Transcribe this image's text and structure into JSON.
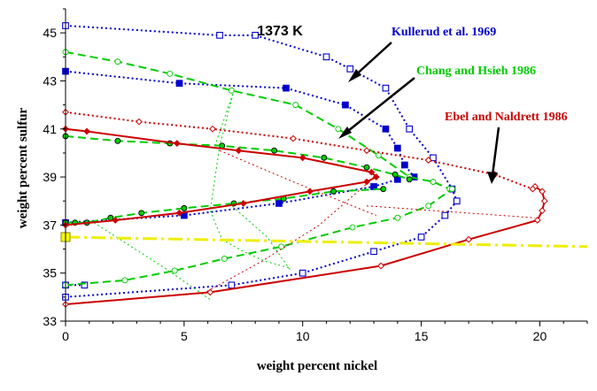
{
  "chart_data": {
    "type": "line",
    "title": "1373 K",
    "xlabel": "weight percent nickel",
    "ylabel": "weight percent sulfur",
    "xlim": [
      0,
      22
    ],
    "ylim": [
      33,
      46
    ],
    "x_ticks": [
      0,
      5,
      10,
      15,
      20
    ],
    "y_ticks": [
      33,
      35,
      37,
      39,
      41,
      43,
      45
    ],
    "grid": false,
    "annotations": [
      {
        "text": "Kullerud et al. 1969",
        "color": "#0000cc"
      },
      {
        "text": "Chang and Hsieh 1986",
        "color": "#00cc00"
      },
      {
        "text": "Ebel and Naldrett 1986",
        "color": "#cc0000"
      }
    ],
    "series": [
      {
        "name": "Kullerud et al. 1969",
        "color": "#0000cc",
        "lines": [
          {
            "style": "dotted",
            "width": 2,
            "marker": "square-open",
            "x": [
              0.0,
              6.5,
              8.0,
              11.0,
              12.0,
              13.5,
              14.5,
              15.5,
              16.3,
              16.5,
              16.0,
              15.0,
              13.0,
              10.0,
              7.0,
              0.0
            ],
            "y": [
              45.3,
              44.9,
              44.9,
              44.0,
              43.5,
              42.7,
              41.0,
              39.8,
              38.5,
              38.0,
              37.4,
              36.5,
              35.9,
              35.0,
              34.5,
              34.0
            ]
          },
          {
            "style": "dotted",
            "width": 2,
            "marker": "square-filled",
            "x": [
              0.0,
              4.8,
              9.3,
              11.8,
              13.5,
              14.0,
              14.3,
              14.7
            ],
            "y": [
              43.4,
              42.9,
              42.7,
              42.0,
              41.0,
              40.2,
              39.5,
              39.0
            ]
          },
          {
            "style": "dotted",
            "width": 2,
            "marker": "square-filled",
            "x": [
              0.0,
              5.0,
              9.0,
              13.0,
              14.0
            ],
            "y": [
              37.1,
              37.4,
              37.9,
              38.6,
              38.9
            ]
          },
          {
            "style": "dotted",
            "width": 2,
            "marker": "square-open",
            "x": [
              0.0,
              0.8
            ],
            "y": [
              34.5,
              34.5
            ]
          }
        ]
      },
      {
        "name": "Chang and Hsieh 1986",
        "color": "#00cc00",
        "lines": [
          {
            "style": "dashed",
            "width": 2,
            "marker": "circle-open",
            "x": [
              0.0,
              2.2,
              4.4,
              7.0,
              9.7,
              11.5,
              13.2,
              14.5,
              15.5,
              16.2
            ],
            "y": [
              44.2,
              43.8,
              43.3,
              42.6,
              42.0,
              41.0,
              39.9,
              39.0,
              38.8,
              38.5
            ]
          },
          {
            "style": "dashed",
            "width": 2,
            "marker": "circle-filled",
            "x": [
              0.0,
              2.2,
              4.4,
              6.6,
              8.8,
              10.9,
              12.7,
              13.9,
              14.5
            ],
            "y": [
              40.7,
              40.5,
              40.4,
              40.3,
              40.1,
              39.8,
              39.4,
              39.1,
              38.9
            ]
          },
          {
            "style": "dashed",
            "width": 2,
            "marker": "circle-filled",
            "x": [
              0.0,
              0.4,
              0.9,
              1.9,
              3.2,
              5.0,
              7.1,
              9.2,
              11.3,
              13.4
            ],
            "y": [
              37.1,
              37.1,
              37.1,
              37.3,
              37.5,
              37.7,
              37.9,
              38.1,
              38.4,
              38.5
            ]
          },
          {
            "style": "dashed",
            "width": 2,
            "marker": "circle-open",
            "x": [
              0.0,
              2.5,
              4.6,
              6.7,
              9.1,
              12.1,
              14.0,
              15.3,
              16.3
            ],
            "y": [
              34.5,
              34.7,
              35.1,
              35.6,
              36.1,
              36.9,
              37.3,
              37.8,
              38.5
            ]
          },
          {
            "style": "dotted",
            "width": 1,
            "marker": "none",
            "x": [
              6.3,
              7.1,
              6.5,
              6.1,
              6.6,
              7.5,
              8.4,
              9.5
            ],
            "y": [
              40.3,
              42.6,
              40.3,
              37.6,
              36.4,
              35.9,
              35.5,
              35.2
            ]
          },
          {
            "style": "dotted",
            "width": 1,
            "marker": "none",
            "x": [
              1.2,
              4.2,
              6.1
            ],
            "y": [
              37.1,
              35.2,
              33.9
            ]
          },
          {
            "style": "dotted",
            "width": 1,
            "marker": "none",
            "x": [
              6.9,
              8.5,
              9.5
            ],
            "y": [
              37.9,
              36.5,
              35.1
            ]
          }
        ]
      },
      {
        "name": "Ebel and Naldrett 1986",
        "color": "#cc0000",
        "lines": [
          {
            "style": "solid",
            "width": 2,
            "marker": "diamond-filled",
            "x": [
              0.0,
              0.9,
              4.7,
              7.3,
              10.0,
              12.9,
              13.1,
              12.7,
              10.3,
              7.5,
              4.8,
              2.1,
              0.0
            ],
            "y": [
              41.0,
              40.9,
              40.4,
              40.1,
              39.8,
              39.2,
              39.0,
              38.8,
              38.4,
              37.9,
              37.5,
              37.2,
              37.0
            ]
          },
          {
            "style": "solid",
            "width": 2,
            "marker": "diamond-open",
            "x": [
              0.0,
              6.1,
              13.3,
              17.0,
              19.9,
              20.1,
              20.2,
              20.1,
              19.8
            ],
            "y": [
              33.7,
              34.2,
              35.3,
              36.4,
              37.2,
              37.6,
              38.0,
              38.4,
              38.6
            ]
          },
          {
            "style": "dotted",
            "width": 2,
            "marker": "diamond-open",
            "x": [
              0.0,
              3.1,
              6.2,
              9.6,
              12.7,
              15.3,
              18.1,
              19.7
            ],
            "y": [
              41.7,
              41.3,
              41.0,
              40.6,
              40.1,
              39.7,
              39.1,
              38.5
            ]
          },
          {
            "style": "dotted",
            "width": 1,
            "marker": "none",
            "x": [
              12.8,
              10.7,
              8.3,
              5.9
            ],
            "y": [
              38.8,
              37.0,
              35.5,
              34.2
            ]
          },
          {
            "style": "dotted",
            "width": 1,
            "marker": "none",
            "x": [
              12.7,
              19.8
            ],
            "y": [
              37.8,
              37.3
            ]
          },
          {
            "style": "dotted",
            "width": 1,
            "marker": "none",
            "x": [
              6.5,
              9.6,
              13.1
            ],
            "y": [
              40.1,
              38.8,
              37.4
            ]
          }
        ]
      },
      {
        "name": "",
        "color": "#eeee00",
        "lines": [
          {
            "style": "dashdot",
            "width": 3,
            "marker": "none",
            "x": [
              0.0,
              22.0
            ],
            "y": [
              36.5,
              36.1
            ]
          }
        ],
        "points": [
          {
            "x": 0.0,
            "y": 36.5,
            "marker": "square-filled-big"
          }
        ]
      }
    ]
  }
}
